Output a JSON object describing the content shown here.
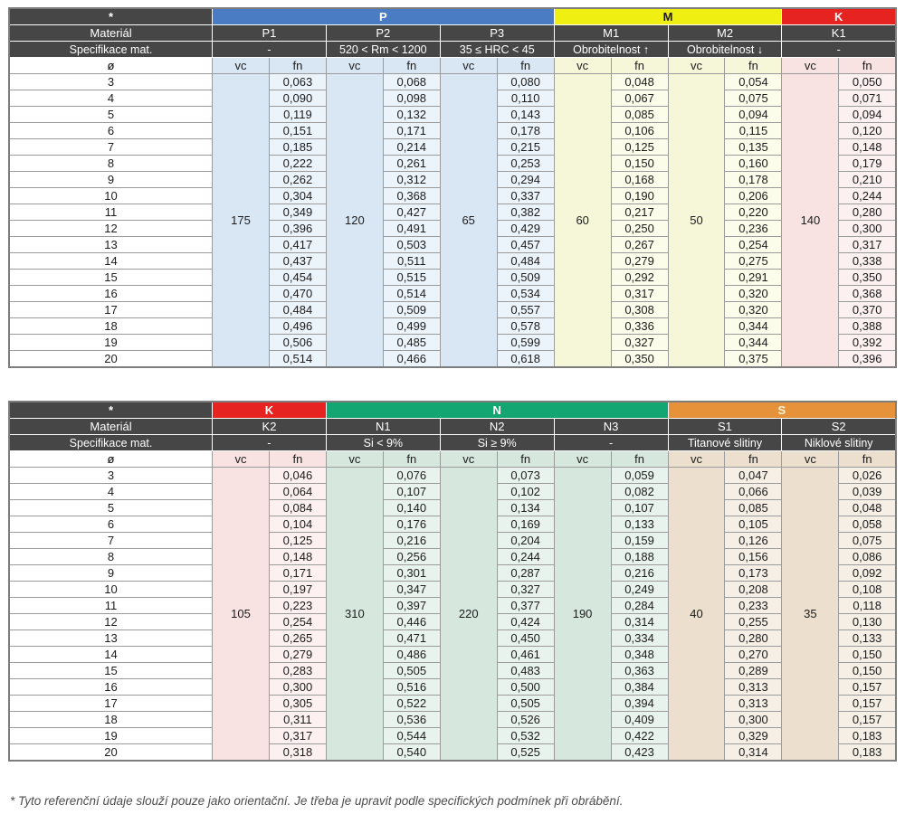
{
  "labels": {
    "corner": "*",
    "material_row": "Materiál",
    "spec_row": "Specifikace mat.",
    "diameter": "ø",
    "vc": "vc",
    "fn": "fn"
  },
  "diameters": [
    "3",
    "4",
    "5",
    "6",
    "7",
    "8",
    "9",
    "10",
    "11",
    "12",
    "13",
    "14",
    "15",
    "16",
    "17",
    "18",
    "19",
    "20"
  ],
  "footer_note": "* Tyto referenční údaje slouží pouze jako orientační. Je třeba je upravit podle specifických podmínek při obrábění.",
  "colors": {
    "header_dark": "#464646",
    "grid": "#9b9b9b",
    "group_P": "#4a7cc4",
    "group_M": "#f0ef12",
    "group_K": "#e62320",
    "group_N": "#13a572",
    "group_S": "#e6923b"
  },
  "tables": [
    {
      "name": "cutting-data-table-PMK",
      "groups": [
        {
          "label": "P",
          "band_color": "#4a7cc4",
          "band_text": "#ffffff",
          "vc_bg": "#d9e7f5",
          "fn_bg": "#ecf4fb",
          "columns": [
            {
              "material": "P1",
              "spec": "-",
              "vc": "175",
              "fn": [
                "0,063",
                "0,090",
                "0,119",
                "0,151",
                "0,185",
                "0,222",
                "0,262",
                "0,304",
                "0,349",
                "0,396",
                "0,417",
                "0,437",
                "0,454",
                "0,470",
                "0,484",
                "0,496",
                "0,506",
                "0,514"
              ]
            },
            {
              "material": "P2",
              "spec": "520 < Rm < 1200",
              "vc": "120",
              "fn": [
                "0,068",
                "0,098",
                "0,132",
                "0,171",
                "0,214",
                "0,261",
                "0,312",
                "0,368",
                "0,427",
                "0,491",
                "0,503",
                "0,511",
                "0,515",
                "0,514",
                "0,509",
                "0,499",
                "0,485",
                "0,466"
              ]
            },
            {
              "material": "P3",
              "spec": "35 ≤ HRC < 45",
              "vc": "65",
              "fn": [
                "0,080",
                "0,110",
                "0,143",
                "0,178",
                "0,215",
                "0,253",
                "0,294",
                "0,337",
                "0,382",
                "0,429",
                "0,457",
                "0,484",
                "0,509",
                "0,534",
                "0,557",
                "0,578",
                "0,599",
                "0,618"
              ]
            }
          ]
        },
        {
          "label": "M",
          "band_color": "#f0ef12",
          "band_text": "#1a1a1a",
          "vc_bg": "#f6f7d9",
          "fn_bg": "#fbfcea",
          "columns": [
            {
              "material": "M1",
              "spec": "Obrobitelnost ↑",
              "vc": "60",
              "fn": [
                "0,048",
                "0,067",
                "0,085",
                "0,106",
                "0,125",
                "0,150",
                "0,168",
                "0,190",
                "0,217",
                "0,250",
                "0,267",
                "0,279",
                "0,292",
                "0,317",
                "0,308",
                "0,336",
                "0,327",
                "0,350"
              ]
            },
            {
              "material": "M2",
              "spec": "Obrobitelnost ↓",
              "vc": "50",
              "fn": [
                "0,054",
                "0,075",
                "0,094",
                "0,115",
                "0,135",
                "0,160",
                "0,178",
                "0,206",
                "0,220",
                "0,236",
                "0,254",
                "0,275",
                "0,291",
                "0,320",
                "0,320",
                "0,344",
                "0,344",
                "0,375"
              ]
            }
          ]
        },
        {
          "label": "K",
          "band_color": "#e62320",
          "band_text": "#ffffff",
          "vc_bg": "#f8e2e2",
          "fn_bg": "#fcf0f0",
          "columns": [
            {
              "material": "K1",
              "spec": "-",
              "vc": "140",
              "fn": [
                "0,050",
                "0,071",
                "0,094",
                "0,120",
                "0,148",
                "0,179",
                "0,210",
                "0,244",
                "0,280",
                "0,300",
                "0,317",
                "0,338",
                "0,350",
                "0,368",
                "0,370",
                "0,388",
                "0,392",
                "0,396"
              ]
            }
          ]
        }
      ]
    },
    {
      "name": "cutting-data-table-KNS",
      "groups": [
        {
          "label": "K",
          "band_color": "#e62320",
          "band_text": "#ffffff",
          "vc_bg": "#f8e2e2",
          "fn_bg": "#fcf0f0",
          "columns": [
            {
              "material": "K2",
              "spec": "-",
              "vc": "105",
              "fn": [
                "0,046",
                "0,064",
                "0,084",
                "0,104",
                "0,125",
                "0,148",
                "0,171",
                "0,197",
                "0,223",
                "0,254",
                "0,265",
                "0,279",
                "0,283",
                "0,300",
                "0,305",
                "0,311",
                "0,317",
                "0,318"
              ]
            }
          ]
        },
        {
          "label": "N",
          "band_color": "#13a572",
          "band_text": "#ffffff",
          "vc_bg": "#d6e8de",
          "fn_bg": "#e9f3ee",
          "columns": [
            {
              "material": "N1",
              "spec": "Si < 9%",
              "vc": "310",
              "fn": [
                "0,076",
                "0,107",
                "0,140",
                "0,176",
                "0,216",
                "0,256",
                "0,301",
                "0,347",
                "0,397",
                "0,446",
                "0,471",
                "0,486",
                "0,505",
                "0,516",
                "0,522",
                "0,536",
                "0,544",
                "0,540"
              ]
            },
            {
              "material": "N2",
              "spec": "Si ≥ 9%",
              "vc": "220",
              "fn": [
                "0,073",
                "0,102",
                "0,134",
                "0,169",
                "0,204",
                "0,244",
                "0,287",
                "0,327",
                "0,377",
                "0,424",
                "0,450",
                "0,461",
                "0,483",
                "0,500",
                "0,505",
                "0,526",
                "0,532",
                "0,525"
              ]
            },
            {
              "material": "N3",
              "spec": "-",
              "vc": "190",
              "fn": [
                "0,059",
                "0,082",
                "0,107",
                "0,133",
                "0,159",
                "0,188",
                "0,216",
                "0,249",
                "0,284",
                "0,314",
                "0,334",
                "0,348",
                "0,363",
                "0,384",
                "0,394",
                "0,409",
                "0,422",
                "0,423"
              ]
            }
          ]
        },
        {
          "label": "S",
          "band_color": "#e6923b",
          "band_text": "#fbf3dc",
          "vc_bg": "#ecdfcd",
          "fn_bg": "#f5efe6",
          "columns": [
            {
              "material": "S1",
              "spec": "Titanové slitiny",
              "vc": "40",
              "fn": [
                "0,047",
                "0,066",
                "0,085",
                "0,105",
                "0,126",
                "0,156",
                "0,173",
                "0,208",
                "0,233",
                "0,255",
                "0,280",
                "0,270",
                "0,289",
                "0,313",
                "0,313",
                "0,300",
                "0,329",
                "0,314"
              ]
            },
            {
              "material": "S2",
              "spec": "Niklové slitiny",
              "vc": "35",
              "fn": [
                "0,026",
                "0,039",
                "0,048",
                "0,058",
                "0,075",
                "0,086",
                "0,092",
                "0,108",
                "0,118",
                "0,130",
                "0,133",
                "0,150",
                "0,150",
                "0,157",
                "0,157",
                "0,157",
                "0,183",
                "0,183"
              ]
            }
          ]
        }
      ]
    }
  ]
}
